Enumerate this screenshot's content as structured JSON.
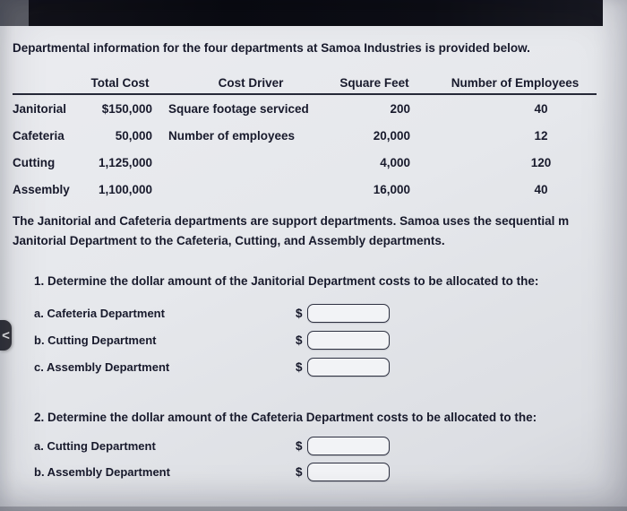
{
  "nav": {
    "back_icon": "<"
  },
  "intro": "Departmental information for the four departments at Samoa Industries is provided below.",
  "table": {
    "headers": {
      "total_cost": "Total Cost",
      "cost_driver": "Cost Driver",
      "square_feet": "Square Feet",
      "employees": "Number of Employees"
    },
    "rows": [
      {
        "dept": "Janitorial",
        "total_cost": "$150,000",
        "cost_driver": "Square footage serviced",
        "square_feet": "200",
        "employees": "40"
      },
      {
        "dept": "Cafeteria",
        "total_cost": "50,000",
        "cost_driver": "Number of employees",
        "square_feet": "20,000",
        "employees": "12"
      },
      {
        "dept": "Cutting",
        "total_cost": "1,125,000",
        "cost_driver": "",
        "square_feet": "4,000",
        "employees": "120"
      },
      {
        "dept": "Assembly",
        "total_cost": "1,100,000",
        "cost_driver": "",
        "square_feet": "16,000",
        "employees": "40"
      }
    ]
  },
  "description": {
    "line1": "The Janitorial and Cafeteria departments are support departments. Samoa uses the sequential m",
    "line2": "Janitorial Department to the Cafeteria, Cutting, and Assembly departments."
  },
  "question1": {
    "prompt": "1. Determine the dollar amount of the Janitorial Department costs to be allocated to the:",
    "currency": "$",
    "items": [
      {
        "label": "a. Cafeteria Department"
      },
      {
        "label": "b. Cutting Department"
      },
      {
        "label": "c. Assembly Department"
      }
    ]
  },
  "question2": {
    "prompt": "2. Determine the dollar amount of the Cafeteria Department costs to be allocated to the:",
    "currency": "$",
    "items": [
      {
        "label": "a. Cutting Department"
      },
      {
        "label": "b. Assembly Department"
      }
    ]
  }
}
